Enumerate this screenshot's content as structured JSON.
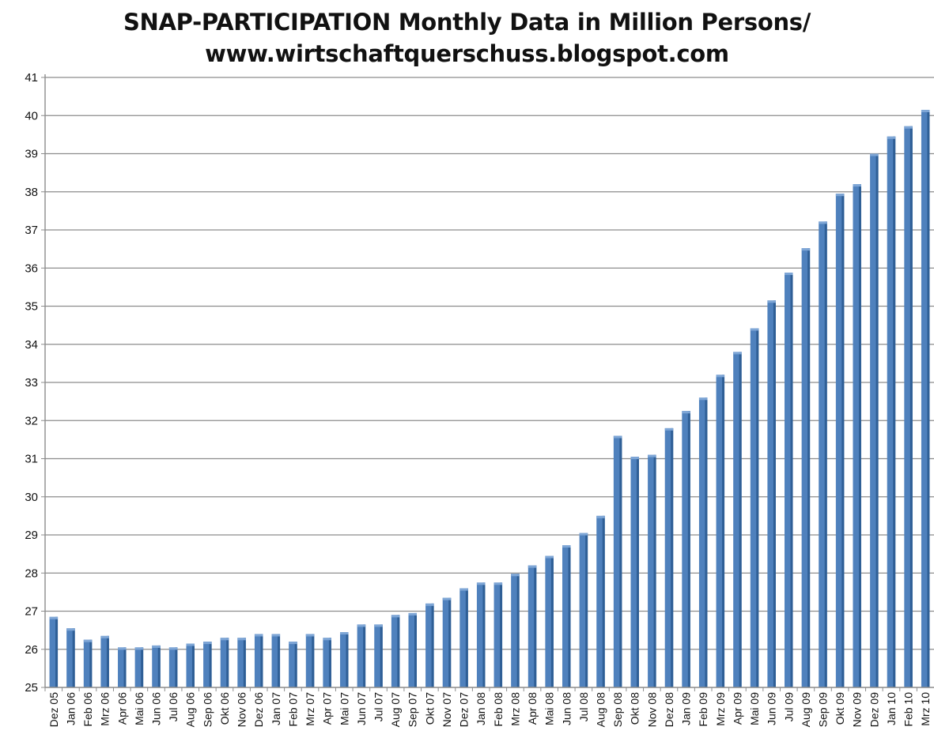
{
  "chart_data": {
    "type": "bar",
    "title_lines": [
      "SNAP-PARTICIPATION Monthly Data in Million Persons/",
      "www.wirtschaftquerschuss.blogspot.com"
    ],
    "xlabel": "",
    "ylabel": "",
    "ylim": [
      25,
      41
    ],
    "yticks": [
      25,
      26,
      27,
      28,
      29,
      30,
      31,
      32,
      33,
      34,
      35,
      36,
      37,
      38,
      39,
      40,
      41
    ],
    "grid": "horizontal",
    "bar_color": "#4f81bd",
    "categories": [
      "Dez 05",
      "Jan 06",
      "Feb 06",
      "Mrz 06",
      "Apr 06",
      "Mai 06",
      "Jun 06",
      "Jul 06",
      "Aug 06",
      "Sep 06",
      "Okt 06",
      "Nov 06",
      "Dez 06",
      "Jan 07",
      "Feb 07",
      "Mrz 07",
      "Apr 07",
      "Mai 07",
      "Jun 07",
      "Jul 07",
      "Aug 07",
      "Sep 07",
      "Okt 07",
      "Nov 07",
      "Dez 07",
      "Jan 08",
      "Feb 08",
      "Mrz 08",
      "Apr 08",
      "Mai 08",
      "Jun 08",
      "Jul 08",
      "Aug 08",
      "Sep 08",
      "Okt 08",
      "Nov 08",
      "Dez 08",
      "Jan 09",
      "Feb 09",
      "Mrz 09",
      "Apr 09",
      "Mai 09",
      "Jun 09",
      "Jul 09",
      "Aug 09",
      "Sep 09",
      "Okt 09",
      "Nov 09",
      "Dez 09",
      "Jan 10",
      "Feb 10",
      "Mrz 10"
    ],
    "tick_labels": [
      "Dez 05",
      "Jan 06",
      "Feb 06",
      "Mrz 06",
      "Apr 06",
      "Mai 06",
      "Jun 06",
      "Jul 06",
      "Aug 06",
      "Sep 06",
      "Okt 06",
      "Nov 06",
      "Dez 06",
      "Jan 07",
      "Feb 07",
      "Mrz 07",
      "Apr 07",
      "Mai 07",
      "Jun 07",
      "Jul 07",
      "Aug 07",
      "Sep 07",
      "Okt 07",
      "Nov 07",
      "Dez 07",
      "Jan 08",
      "Feb 08",
      "Mrz 08",
      "Apr 08",
      "Mai 08",
      "Jun 08",
      "Jul 08",
      "Aug 08",
      "Sep 08",
      "Okt 08",
      "Nov 08",
      "Dez 08",
      "Jan 09",
      "Feb 09",
      "Mrz 09",
      "Apr 09",
      "Mai 09",
      "Jun 09",
      "Jul 09",
      "Aug 09",
      "Sep 09",
      "Okt 09",
      "Nov 09",
      "Dez 09",
      "Jan 10",
      "Feb 10",
      "Mrz 10"
    ],
    "values": [
      26.85,
      26.55,
      26.25,
      26.35,
      26.05,
      26.05,
      26.1,
      26.05,
      26.15,
      26.2,
      26.3,
      26.3,
      26.4,
      26.4,
      26.2,
      26.4,
      26.3,
      26.45,
      26.65,
      26.65,
      26.9,
      26.95,
      27.2,
      27.35,
      27.6,
      27.75,
      27.75,
      27.98,
      28.2,
      28.45,
      28.73,
      29.05,
      29.5,
      31.6,
      31.05,
      31.1,
      31.8,
      32.25,
      32.6,
      33.2,
      33.8,
      34.42,
      35.15,
      35.88,
      36.52,
      37.22,
      37.95,
      38.2,
      39.0,
      39.45,
      39.72,
      40.15
    ]
  }
}
